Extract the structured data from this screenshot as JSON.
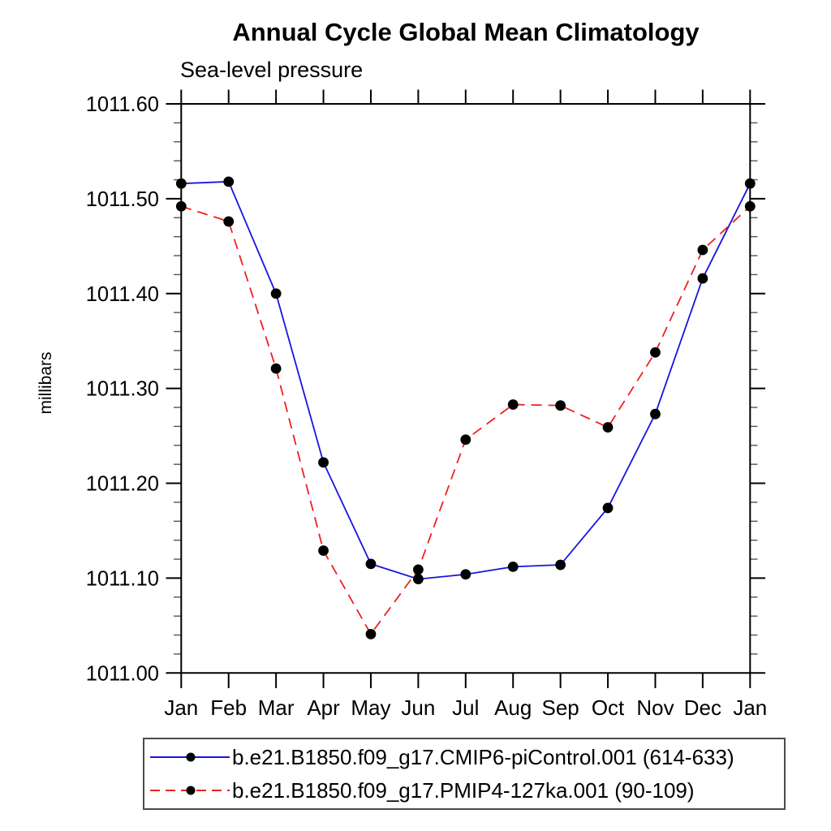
{
  "chart_data": {
    "type": "line",
    "title": "Annual Cycle Global Mean Climatology",
    "subtitle": "Sea-level pressure",
    "ylabel": "millibars",
    "categories": [
      "Jan",
      "Feb",
      "Mar",
      "Apr",
      "May",
      "Jun",
      "Jul",
      "Aug",
      "Sep",
      "Oct",
      "Nov",
      "Dec",
      "Jan"
    ],
    "ylim": [
      1011.0,
      1011.6
    ],
    "ytick_major_interval": 0.1,
    "ytick_minor_interval": 0.02,
    "ytick_labels": [
      "1011.00",
      "1011.10",
      "1011.20",
      "1011.30",
      "1011.40",
      "1011.50",
      "1011.60"
    ],
    "grid": false,
    "legend_position": "bottom-left",
    "axis_color": "#000000",
    "minor_tick_color": "#555555",
    "marker_color": "#000000",
    "series": [
      {
        "name": "b.e21.B1850.f09_g17.CMIP6-piControl.001 (614-633)",
        "color": "#1515e0",
        "line_style": "solid",
        "marker": "filled-circle",
        "values": [
          1011.516,
          1011.518,
          1011.4,
          1011.222,
          1011.115,
          1011.099,
          1011.104,
          1011.112,
          1011.114,
          1011.174,
          1011.273,
          1011.416,
          1011.516
        ]
      },
      {
        "name": "b.e21.B1850.f09_g17.PMIP4-127ka.001 (90-109)",
        "color": "#ee2020",
        "line_style": "dashed",
        "marker": "filled-circle",
        "values": [
          1011.492,
          1011.476,
          1011.321,
          1011.129,
          1011.041,
          1011.109,
          1011.246,
          1011.283,
          1011.282,
          1011.259,
          1011.338,
          1011.446,
          1011.492
        ]
      }
    ]
  }
}
